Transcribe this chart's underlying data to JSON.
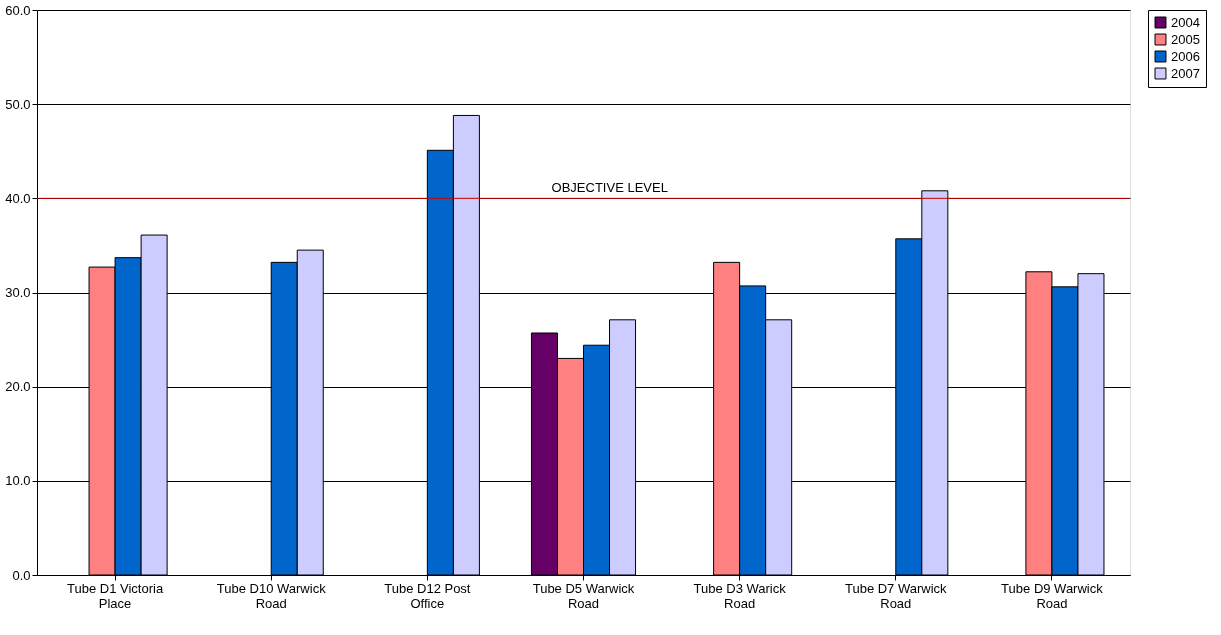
{
  "chart_data": {
    "type": "bar",
    "categories": [
      "Tube D1 Victoria Place",
      "Tube D10 Warwick Road",
      "Tube D12 Post Office",
      "Tube D5 Warwick Road",
      "Tube D3 Warick Road",
      "Tube D7 Warwick Road",
      "Tube D9 Warwick Road"
    ],
    "series": [
      {
        "name": "2004",
        "color": "#660066",
        "values": [
          null,
          null,
          null,
          25.7,
          null,
          null,
          null
        ]
      },
      {
        "name": "2005",
        "color": "#ff8080",
        "values": [
          32.7,
          null,
          null,
          23.0,
          33.2,
          null,
          32.2
        ]
      },
      {
        "name": "2006",
        "color": "#0066cc",
        "values": [
          33.7,
          33.2,
          45.1,
          24.4,
          30.7,
          35.7,
          30.6
        ]
      },
      {
        "name": "2007",
        "color": "#ccccff",
        "values": [
          36.1,
          34.5,
          48.8,
          27.1,
          27.1,
          40.8,
          32.0
        ]
      }
    ],
    "ylim": [
      0,
      60
    ],
    "yticks": [
      {
        "value": 0,
        "label": "0.0"
      },
      {
        "value": 10,
        "label": "10.0"
      },
      {
        "value": 20,
        "label": "20.0"
      },
      {
        "value": 30,
        "label": "30.0"
      },
      {
        "value": 40,
        "label": "40.0"
      },
      {
        "value": 50,
        "label": "50.0"
      },
      {
        "value": 60,
        "label": "60.0"
      }
    ],
    "ref_lines": [
      {
        "axis": "y",
        "value": 40,
        "label": "OBJECTIVE LEVEL",
        "color": "#cc0000"
      }
    ],
    "grid": "y",
    "legend": "right"
  }
}
